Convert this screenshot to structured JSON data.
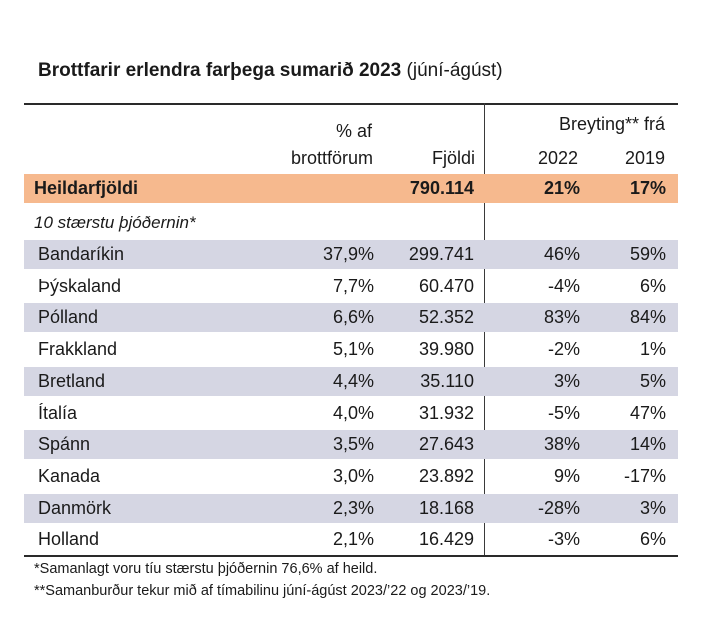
{
  "title": {
    "bold": "Brottfarir erlendra farþega sumarið 2023",
    "sub": "(júní-ágúst)"
  },
  "headers": {
    "pct_line1": "% af",
    "pct_line2": "brottförum",
    "count": "Fjöldi",
    "change": "Breyting** frá",
    "y2022": "2022",
    "y2019": "2019"
  },
  "total": {
    "name": "Heildarfjöldi",
    "pct": "",
    "count": "790.114",
    "y2022": "21%",
    "y2019": "17%"
  },
  "subheading": "10 stærstu þjóðernin*",
  "rows": [
    {
      "name": "Bandaríkin",
      "pct": "37,9%",
      "count": "299.741",
      "y2022": "46%",
      "y2019": "59%"
    },
    {
      "name": "Þýskaland",
      "pct": "7,7%",
      "count": "60.470",
      "y2022": "-4%",
      "y2019": "6%"
    },
    {
      "name": "Pólland",
      "pct": "6,6%",
      "count": "52.352",
      "y2022": "83%",
      "y2019": "84%"
    },
    {
      "name": "Frakkland",
      "pct": "5,1%",
      "count": "39.980",
      "y2022": "-2%",
      "y2019": "1%"
    },
    {
      "name": "Bretland",
      "pct": "4,4%",
      "count": "35.110",
      "y2022": "3%",
      "y2019": "5%"
    },
    {
      "name": "Ítalía",
      "pct": "4,0%",
      "count": "31.932",
      "y2022": "-5%",
      "y2019": "47%"
    },
    {
      "name": "Spánn",
      "pct": "3,5%",
      "count": "27.643",
      "y2022": "38%",
      "y2019": "14%"
    },
    {
      "name": "Kanada",
      "pct": "3,0%",
      "count": "23.892",
      "y2022": "9%",
      "y2019": "-17%"
    },
    {
      "name": "Danmörk",
      "pct": "2,3%",
      "count": "18.168",
      "y2022": "-28%",
      "y2019": "3%"
    },
    {
      "name": "Holland",
      "pct": "2,1%",
      "count": "16.429",
      "y2022": "-3%",
      "y2019": "6%"
    }
  ],
  "footnotes": [
    "*Samanlagt voru tíu stærstu þjóðernin 76,6% af heild.",
    "**Samanburður tekur mið af tímabilinu júní-ágúst 2023/’22 og 2023/’19."
  ],
  "colors": {
    "total_row": "#f6b98e",
    "shaded_row": "#d5d6e3"
  }
}
